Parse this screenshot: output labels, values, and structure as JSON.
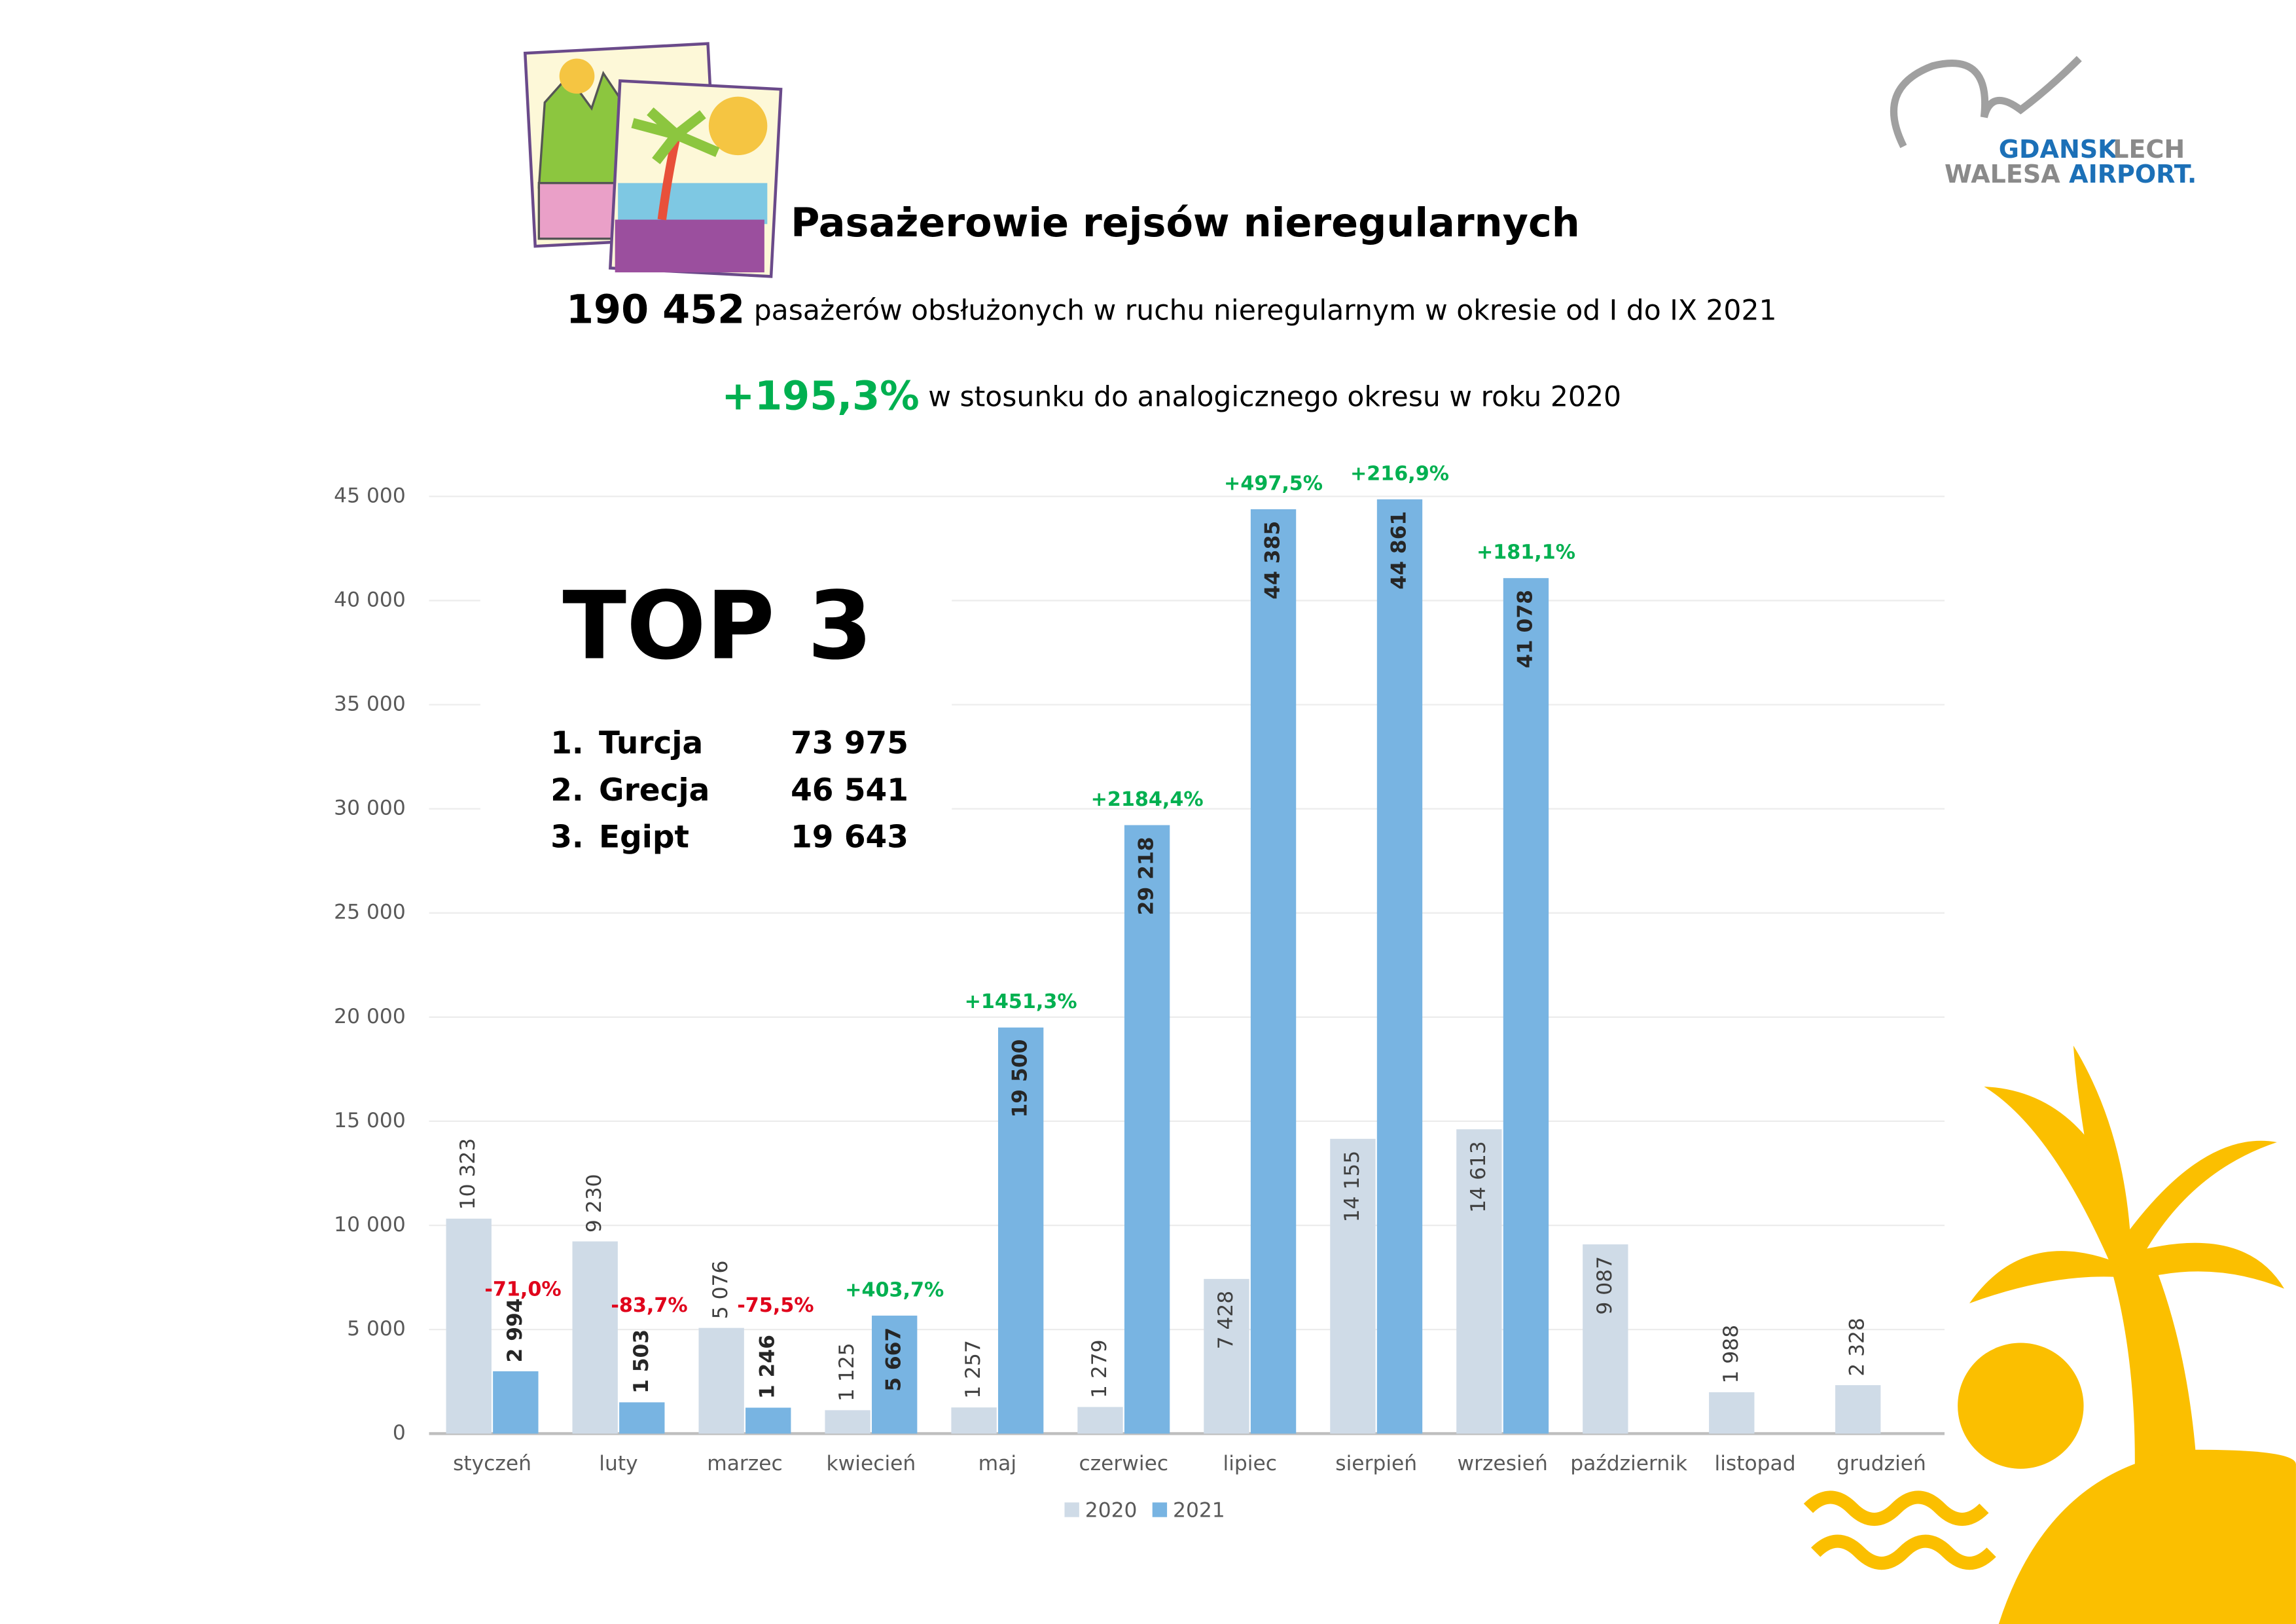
{
  "chart_data": {
    "type": "bar",
    "title": "Pasażerowie rejsów nieregularnych",
    "total": "190 452",
    "total_text": "pasażerów obsłużonych w ruchu nieregularnym w okresie od I do IX 2021",
    "change": "+195,3%",
    "change_text": "w stosunku do analogicznego okresu w roku 2020",
    "logo": [
      "GDANSK",
      "LECH",
      "WALESA",
      "AIRPORT."
    ],
    "top3": {
      "title": "TOP 3",
      "items": [
        {
          "rank": "1.",
          "name": "Turcja",
          "value": "73 975"
        },
        {
          "rank": "2.",
          "name": "Grecja",
          "value": "46 541"
        },
        {
          "rank": "3.",
          "name": "Egipt",
          "value": "19 643"
        }
      ]
    },
    "categories": [
      "styczeń",
      "luty",
      "marzec",
      "kwiecień",
      "maj",
      "czerwiec",
      "lipiec",
      "sierpień",
      "wrzesień",
      "październik",
      "listopad",
      "grudzień"
    ],
    "series": [
      {
        "name": "2020",
        "color": "#cfdbe7",
        "values": [
          10323,
          9230,
          5076,
          1125,
          1257,
          1279,
          7428,
          14155,
          14613,
          9087,
          1988,
          2328
        ],
        "value_labels": [
          "10 323",
          "9 230",
          "5 076",
          "1 125",
          "1 257",
          "1 279",
          "7 428",
          "14 155",
          "14 613",
          "9 087",
          "1 988",
          "2 328"
        ]
      },
      {
        "name": "2021",
        "color": "#78b4e2",
        "values": [
          2994,
          1503,
          1246,
          5667,
          19500,
          29218,
          44385,
          44861,
          41078,
          null,
          null,
          null
        ],
        "value_labels": [
          "2 994",
          "1 503",
          "1 246",
          "5 667",
          "19 500",
          "29 218",
          "44 385",
          "44 861",
          "41 078",
          null,
          null,
          null
        ],
        "change_labels": [
          "-71,0%",
          "-83,7%",
          "-75,5%",
          "+403,7%",
          "+1451,3%",
          "+2184,4%",
          "+497,5%",
          "+216,9%",
          "+181,1%",
          null,
          null,
          null
        ]
      }
    ],
    "positive_color": "#00b050",
    "negative_color": "#e0001b",
    "ylim": [
      0,
      45000
    ],
    "yticks": [
      {
        "value": 0,
        "label": "0"
      },
      {
        "value": 5000,
        "label": "5 000"
      },
      {
        "value": 10000,
        "label": "10 000"
      },
      {
        "value": 15000,
        "label": "15 000"
      },
      {
        "value": 20000,
        "label": "20 000"
      },
      {
        "value": 25000,
        "label": "25 000"
      },
      {
        "value": 30000,
        "label": "30 000"
      },
      {
        "value": 35000,
        "label": "35 000"
      },
      {
        "value": 40000,
        "label": "40 000"
      },
      {
        "value": 45000,
        "label": "45 000"
      }
    ],
    "grid": true,
    "legend": "bottom"
  }
}
